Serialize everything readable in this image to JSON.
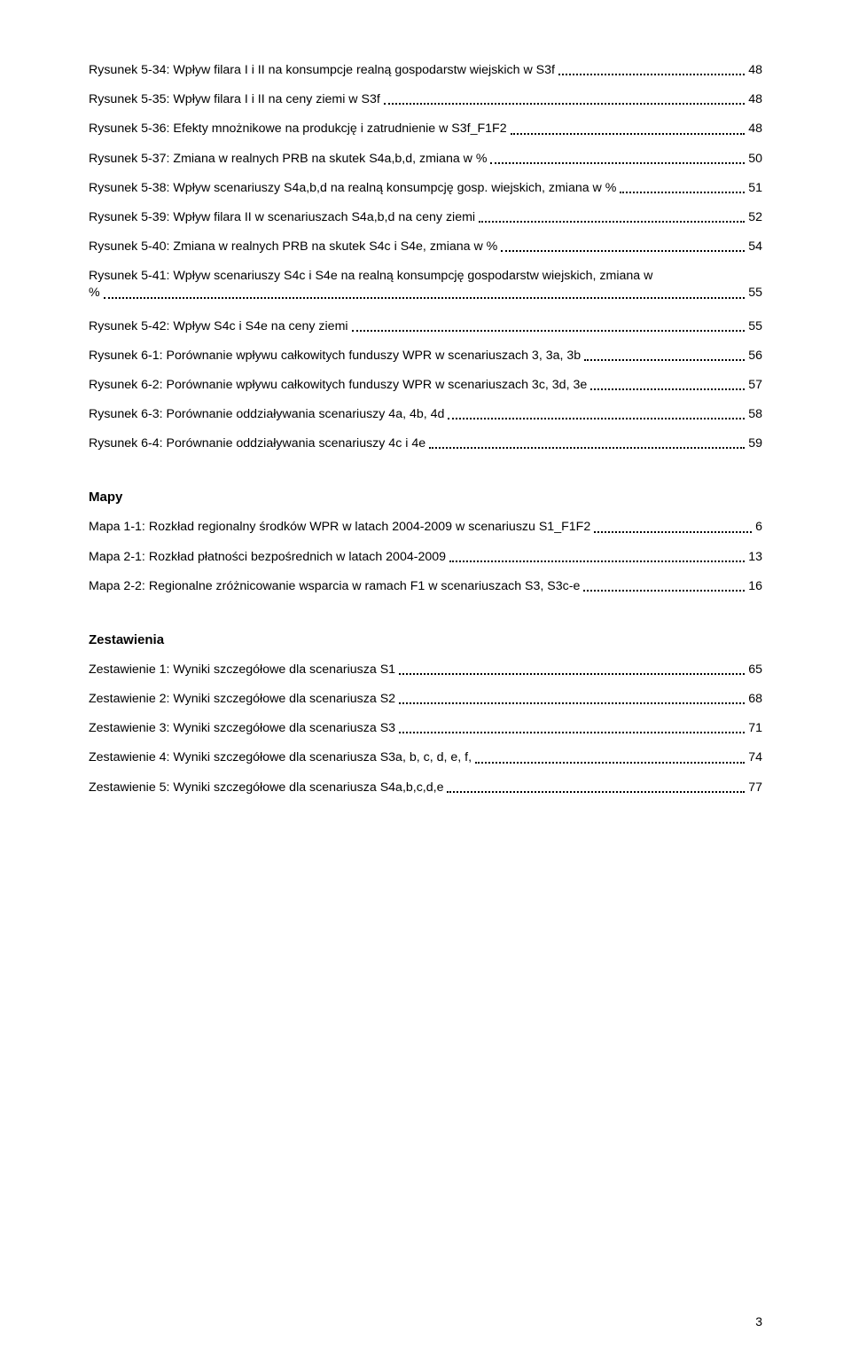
{
  "figures": [
    {
      "label": "Rysunek 5-34: Wpływ filara I i II na konsumpcje realną gospodarstw wiejskich w S3f",
      "page": "48"
    },
    {
      "label": "Rysunek 5-35: Wpływ filara I i II na ceny ziemi w S3f",
      "page": "48"
    },
    {
      "label": "Rysunek 5-36: Efekty mnożnikowe na produkcję i zatrudnienie w S3f_F1F2",
      "page": "48"
    },
    {
      "label": "Rysunek 5-37: Zmiana w realnych PRB na skutek S4a,b,d, zmiana w %",
      "page": "50"
    },
    {
      "label": "Rysunek 5-38: Wpływ scenariuszy S4a,b,d na realną konsumpcję gosp. wiejskich, zmiana w %",
      "page": "51"
    },
    {
      "label": "Rysunek 5-39: Wpływ filara II w scenariuszach S4a,b,d na ceny ziemi",
      "page": "52"
    },
    {
      "label": "Rysunek 5-40: Zmiana w realnych PRB na skutek S4c i S4e, zmiana w %",
      "page": "54"
    },
    {
      "label_line1": "Rysunek 5-41: Wpływ scenariuszy S4c i S4e na realną konsumpcję gospodarstw wiejskich, zmiana w",
      "label_line2": "%",
      "page": "55",
      "wrap": true
    },
    {
      "label": "Rysunek 5-42: Wpływ S4c i S4e na ceny ziemi",
      "page": "55"
    },
    {
      "label": "Rysunek 6-1: Porównanie wpływu całkowitych funduszy WPR w scenariuszach 3, 3a, 3b",
      "page": "56"
    },
    {
      "label": "Rysunek 6-2: Porównanie wpływu całkowitych funduszy WPR w scenariuszach 3c, 3d, 3e",
      "page": "57"
    },
    {
      "label": "Rysunek 6-3: Porównanie oddziaływania  scenariuszy 4a, 4b, 4d",
      "page": "58"
    },
    {
      "label": "Rysunek 6-4: Porównanie oddziaływania  scenariuszy 4c i 4e",
      "page": "59"
    }
  ],
  "maps_title": "Mapy",
  "maps": [
    {
      "label": "Mapa  1-1: Rozkład regionalny środków WPR w latach 2004-2009 w scenariuszu  S1_F1F2",
      "page": "6"
    },
    {
      "label": "Mapa  2-1: Rozkład płatności bezpośrednich w latach 2004-2009",
      "page": "13"
    },
    {
      "label": "Mapa  2-2: Regionalne zróżnicowanie wsparcia w ramach F1 w scenariuszach S3, S3c-e",
      "page": "16"
    }
  ],
  "lists_title": "Zestawienia",
  "lists": [
    {
      "label": "Zestawienie  1: Wyniki szczegółowe dla scenariusza S1",
      "page": "65"
    },
    {
      "label": "Zestawienie  2: Wyniki szczegółowe dla scenariusza S2",
      "page": "68"
    },
    {
      "label": "Zestawienie  3: Wyniki szczegółowe dla scenariusza S3",
      "page": "71"
    },
    {
      "label": "Zestawienie  4: Wyniki szczegółowe dla scenariusza S3a, b, c, d, e, f,",
      "page": "74"
    },
    {
      "label": "Zestawienie  5: Wyniki szczegółowe dla scenariusza S4a,b,c,d,e",
      "page": "77"
    }
  ],
  "page_number": "3"
}
